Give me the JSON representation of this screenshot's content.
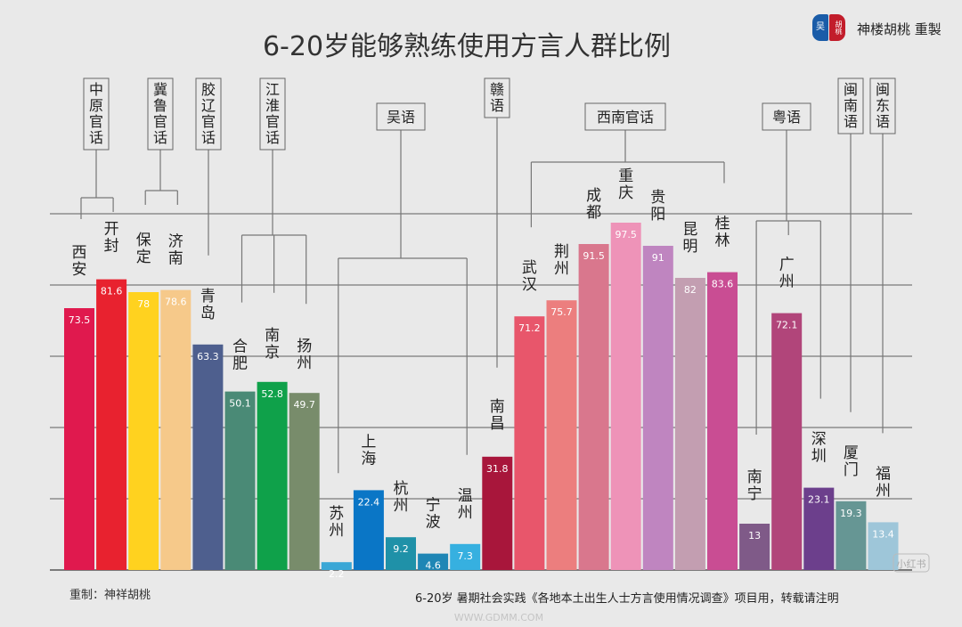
{
  "chart_data": {
    "type": "bar",
    "title": "6-20岁能够熟练使用方言人群比例",
    "ylim": [
      0,
      100
    ],
    "grid": true,
    "categories": [
      "西安",
      "开封",
      "保定",
      "济南",
      "青岛",
      "合肥",
      "南京",
      "扬州",
      "苏州",
      "上海",
      "杭州",
      "宁波",
      "温州",
      "南昌",
      "武汉",
      "荆州",
      "成都",
      "重庆",
      "贵阳",
      "昆明",
      "桂林",
      "南宁",
      "广州",
      "深圳",
      "厦门",
      "福州"
    ],
    "values": [
      73.5,
      81.6,
      78,
      78.6,
      63.3,
      50.1,
      52.8,
      49.7,
      2.2,
      22.4,
      9.2,
      4.6,
      7.3,
      31.8,
      71.2,
      75.7,
      91.5,
      97.5,
      91,
      82,
      83.6,
      13,
      72.1,
      23.1,
      19.3,
      13.4
    ],
    "value_labels": [
      "73.5",
      "81.6",
      "78",
      "78.6",
      "63.3",
      "50.1",
      "52.8",
      "49.7",
      "2.2",
      "22.4",
      "9.2",
      "4.6",
      "7.3",
      "31.8",
      "71.2",
      "75.7",
      "91.5",
      "97.5",
      "91",
      "82",
      "83.6",
      "13",
      "72.1",
      "23.1",
      "19.3",
      "13.4"
    ],
    "colors": [
      "#e0194e",
      "#e8222f",
      "#ffd21f",
      "#f6c98a",
      "#4e5f8e",
      "#4a8a76",
      "#0fa14a",
      "#788c6b",
      "#3aa7d6",
      "#0a76c6",
      "#1f91a8",
      "#1f86b5",
      "#36b0e0",
      "#a8163b",
      "#e8566b",
      "#ec7e7e",
      "#d9778d",
      "#ee93b8",
      "#bf85c0",
      "#c39eb1",
      "#c94d93",
      "#7f5a88",
      "#b1457a",
      "#6c3f8c",
      "#669694",
      "#9ec6d9"
    ],
    "groups": [
      {
        "label": "中原官话",
        "members": [
          "西安",
          "开封"
        ]
      },
      {
        "label": "冀鲁官话",
        "members": [
          "保定",
          "济南"
        ]
      },
      {
        "label": "胶辽官话",
        "members": [
          "青岛"
        ]
      },
      {
        "label": "江淮官话",
        "members": [
          "合肥",
          "南京",
          "扬州"
        ]
      },
      {
        "label": "吴语",
        "members": [
          "苏州",
          "温州"
        ]
      },
      {
        "label": "赣语",
        "members": [
          "南昌"
        ]
      },
      {
        "label": "西南官话",
        "members": [
          "武汉",
          "桂林"
        ]
      },
      {
        "label": "粤语",
        "members": [
          "南宁",
          "广州",
          "深圳"
        ]
      },
      {
        "label": "闽南语",
        "members": [
          "厦门"
        ]
      },
      {
        "label": "闽东语",
        "members": [
          "福州"
        ]
      }
    ]
  },
  "logo": {
    "text": "神楼胡桃 重製",
    "seal_left": "吴",
    "seal_right": "胡桃"
  },
  "footer": {
    "credit": "重制：神祥胡桃",
    "source": "6-20岁 暑期社会实践《各地本土出生人士方言使用情况调查》项目用，转载请注明"
  },
  "watermarks": {
    "xhs": "小红书",
    "gdmm": "WWW.GDMM.COM"
  },
  "colors": {
    "background": "#e9e9e9",
    "grid": "#777777",
    "text": "#333333",
    "seal_blue": "#1a5ca8",
    "seal_red": "#c21d2b"
  }
}
